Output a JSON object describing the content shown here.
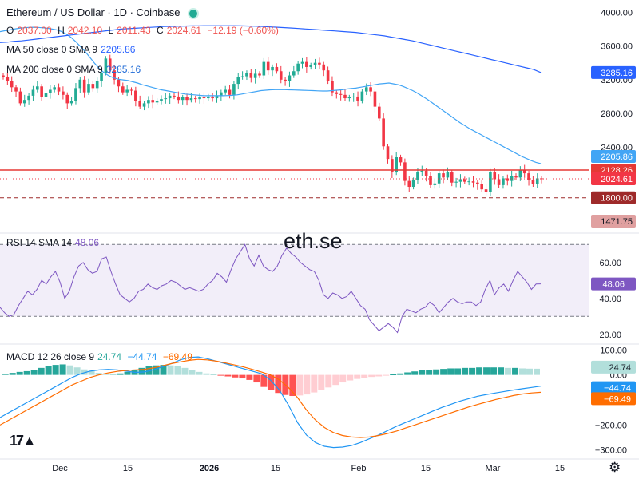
{
  "header": {
    "symbol_line": "Ethereum / US Dollar · 1D · Coinbase",
    "ohlc": {
      "o_label": "O",
      "o": "2037.00",
      "h_label": "H",
      "h": "2042.10",
      "l_label": "L",
      "l": "2011.43",
      "c_label": "C",
      "c": "2024.61",
      "change": "−12.19 (−0.60%)"
    },
    "ma50_label": "MA 50 close 0 SMA 9",
    "ma50_value": "2205.86",
    "ma200_label": "MA 200 close 0 SMA 9",
    "ma200_value": "3285.16"
  },
  "watermark": "eth.se",
  "colors": {
    "up": "#22ab94",
    "down": "#f23645",
    "ma50": "#42a5f5",
    "ma200": "#2962ff",
    "rsi": "#7e57c2",
    "macd": "#2196f3",
    "signal": "#ff6d00",
    "resistance": "#e53935",
    "support": "#9e2a2a"
  },
  "icons": [
    "status-dot-icon",
    "tradingview-logo-icon",
    "settings-gear-icon"
  ],
  "chart_data": [
    {
      "type": "candlestick",
      "title": "Ethereum / US Dollar · 1D · Coinbase",
      "x_ticks": [
        "Dec",
        "15",
        "2026",
        "15",
        "Feb",
        "15",
        "Mar",
        "15"
      ],
      "y_ticks": [
        "4000.00",
        "3600.00",
        "3200.00",
        "2800.00",
        "2400.00"
      ],
      "ylim": [
        1400,
        4050
      ],
      "close": [
        3230,
        3180,
        3110,
        3060,
        2920,
        2960,
        3010,
        3080,
        3120,
        2990,
        3040,
        3080,
        3110,
        3060,
        3020,
        2920,
        2950,
        3100,
        3200,
        3050,
        3150,
        3100,
        3180,
        3280,
        3450,
        3310,
        3200,
        3120,
        3050,
        3080,
        3070,
        2950,
        2880,
        2920,
        2960,
        2930,
        2950,
        2970,
        2980,
        3010,
        3000,
        2960,
        2990,
        2960,
        2980,
        2970,
        2990,
        2980,
        3000,
        2980,
        3010,
        3050,
        3080,
        3020,
        3150,
        3230,
        3240,
        3280,
        3220,
        3270,
        3250,
        3410,
        3310,
        3350,
        3300,
        3200,
        3180,
        3250,
        3300,
        3390,
        3410,
        3350,
        3370,
        3400,
        3380,
        3310,
        3180,
        3050,
        3030,
        3020,
        2980,
        2990,
        3000,
        2950,
        3060,
        3110,
        3060,
        2880,
        2740,
        2410,
        2260,
        2100,
        2280,
        2220,
        2000,
        1930,
        2010,
        2110,
        2120,
        2060,
        1950,
        1970,
        2090,
        2040,
        2100,
        1980,
        1990,
        2020,
        1990,
        1995,
        1980,
        1960,
        1900,
        1870,
        2110,
        2020,
        1950,
        2030,
        2000,
        2060,
        2040,
        2130,
        2090,
        2010,
        1960,
        2030,
        2025
      ],
      "ma50": [
        3770,
        3780,
        3790,
        3800,
        3810,
        3815,
        3820,
        3822,
        3820,
        3815,
        3810,
        3800,
        3790,
        3770,
        3740,
        3700,
        3650,
        3590,
        3530,
        3460,
        3390,
        3330,
        3280,
        3245,
        3220,
        3205,
        3197,
        3190,
        3175,
        3160,
        3140,
        3125,
        3110,
        3095,
        3080,
        3070,
        3060,
        3050,
        3040,
        3030,
        3025,
        3020,
        3015,
        3010,
        3010,
        3010,
        3010,
        3010,
        3012,
        3015,
        3020,
        3030,
        3040,
        3050,
        3060,
        3070,
        3075,
        3080,
        3082,
        3082,
        3082,
        3080,
        3078,
        3076,
        3074,
        3072,
        3070,
        3068,
        3066,
        3066,
        3070,
        3075,
        3080,
        3088,
        3095,
        3100,
        3110,
        3120,
        3130,
        3140,
        3150,
        3155,
        3160,
        3150,
        3140,
        3120,
        3095,
        3070,
        3040,
        3005,
        2970,
        2930,
        2890,
        2850,
        2810,
        2770,
        2730,
        2690,
        2655,
        2620,
        2590,
        2560,
        2530,
        2500,
        2470,
        2440,
        2410,
        2380,
        2350,
        2320,
        2290,
        2265,
        2240,
        2220,
        2205.86
      ],
      "ma200": [
        3640,
        3645,
        3655,
        3660,
        3670,
        3680,
        3690,
        3700,
        3710,
        3720,
        3730,
        3740,
        3750,
        3760,
        3770,
        3780,
        3790,
        3800,
        3805,
        3810,
        3815,
        3820,
        3825,
        3830,
        3832,
        3834,
        3836,
        3838,
        3839,
        3840,
        3840,
        3840,
        3840,
        3840,
        3838,
        3836,
        3834,
        3830,
        3826,
        3822,
        3817,
        3812,
        3807,
        3801,
        3796,
        3790,
        3784,
        3778,
        3772,
        3766,
        3760,
        3750,
        3740,
        3730,
        3720,
        3705,
        3690,
        3675,
        3660,
        3640,
        3620,
        3600,
        3580,
        3560,
        3540,
        3520,
        3500,
        3480,
        3460,
        3440,
        3420,
        3400,
        3380,
        3360,
        3340,
        3320,
        3285.16
      ],
      "resistance": 2128.26,
      "support": 1800.0,
      "last_price": 2024.61,
      "price_labels": [
        "3285.16",
        "2205.86",
        "2128.26",
        "2024.61",
        "1800.00",
        "1471.75"
      ]
    },
    {
      "type": "line",
      "title": "RSI 14 SMA 14",
      "value": "48.06",
      "y_ticks": [
        "60.00",
        "40.00",
        "20.00"
      ],
      "ylim": [
        15,
        75
      ],
      "bands": [
        30,
        70
      ],
      "values": [
        35,
        32,
        30,
        31,
        36,
        40,
        44,
        42,
        45,
        50,
        48,
        52,
        55,
        49,
        40,
        44,
        52,
        58,
        60,
        56,
        54,
        55,
        62,
        63,
        55,
        48,
        42,
        40,
        38,
        40,
        44,
        45,
        48,
        46,
        45,
        47,
        48,
        50,
        49,
        47,
        45,
        46,
        45,
        44,
        45,
        48,
        50,
        54,
        52,
        49,
        56,
        62,
        66,
        70,
        62,
        58,
        64,
        58,
        56,
        55,
        58,
        64,
        68,
        65,
        63,
        60,
        58,
        56,
        55,
        50,
        42,
        40,
        43,
        42,
        40,
        41,
        44,
        40,
        36,
        34,
        28,
        25,
        22,
        24,
        26,
        24,
        21,
        30,
        34,
        33,
        32,
        34,
        35,
        38,
        36,
        32,
        35,
        38,
        40,
        38,
        37,
        38,
        38,
        36,
        38,
        45,
        50,
        42,
        46,
        48,
        44,
        50,
        55,
        52,
        49,
        45,
        48,
        48.06
      ]
    },
    {
      "type": "bar",
      "title": "MACD 12 26 close 9",
      "histogram_value": "24.74",
      "macd_value": "−44.74",
      "signal_value": "−69.49",
      "y_ticks": [
        "100.00",
        "0.00",
        "−200.00",
        "−300.00"
      ],
      "ylim": [
        -320,
        120
      ],
      "histogram": [
        5,
        8,
        12,
        15,
        20,
        28,
        35,
        40,
        42,
        38,
        30,
        22,
        15,
        8,
        4,
        2,
        6,
        12,
        20,
        28,
        35,
        38,
        40,
        38,
        34,
        28,
        20,
        12,
        6,
        2,
        -2,
        -6,
        -10,
        -14,
        -20,
        -30,
        -48,
        -60,
        -72,
        -80,
        -84,
        -82,
        -78,
        -70,
        -60,
        -50,
        -40,
        -30,
        -22,
        -16,
        -12,
        -8,
        -6,
        -3,
        2,
        6,
        10,
        14,
        18,
        20,
        22,
        24,
        26,
        26,
        28,
        28,
        30,
        30,
        30,
        30,
        28,
        28,
        26,
        25,
        24.74
      ],
      "macd": [
        -170,
        -150,
        -130,
        -110,
        -90,
        -70,
        -50,
        -30,
        -10,
        5,
        15,
        20,
        22,
        20,
        15,
        10,
        12,
        20,
        32,
        45,
        60,
        70,
        72,
        65,
        55,
        45,
        35,
        25,
        15,
        5,
        -20,
        -60,
        -120,
        -190,
        -240,
        -270,
        -285,
        -290,
        -288,
        -282,
        -270,
        -255,
        -240,
        -222,
        -205,
        -190,
        -175,
        -160,
        -145,
        -130,
        -118,
        -105,
        -95,
        -85,
        -78,
        -72,
        -66,
        -60,
        -55,
        -50,
        -44.74
      ],
      "signal": [
        -200,
        -180,
        -160,
        -140,
        -120,
        -100,
        -80,
        -60,
        -40,
        -25,
        -10,
        0,
        8,
        14,
        18,
        20,
        22,
        28,
        36,
        45,
        52,
        58,
        62,
        60,
        55,
        48,
        40,
        32,
        22,
        12,
        0,
        -20,
        -50,
        -90,
        -140,
        -180,
        -210,
        -230,
        -242,
        -248,
        -250,
        -248,
        -242,
        -234,
        -224,
        -212,
        -200,
        -188,
        -176,
        -164,
        -152,
        -140,
        -128,
        -118,
        -108,
        -98,
        -90,
        -82,
        -76,
        -72,
        -69.49
      ]
    }
  ]
}
